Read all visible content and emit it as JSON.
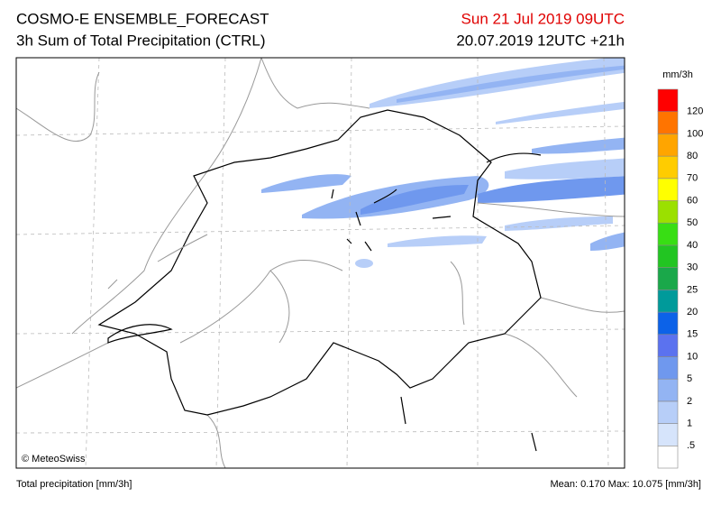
{
  "header": {
    "title": "COSMO-E ENSEMBLE_FORECAST",
    "subtitle": "3h Sum of Total Precipitation (CTRL)",
    "valid_time": "Sun 21 Jul 2019 09UTC",
    "run_time": "20.07.2019 12UTC +21h"
  },
  "legend": {
    "unit": "mm/3h",
    "levels": [
      ".5",
      "1",
      "2",
      "5",
      "10",
      "15",
      "20",
      "25",
      "30",
      "40",
      "50",
      "60",
      "70",
      "80",
      "100",
      "120"
    ],
    "colors": [
      "#ffffff",
      "#d6e4fb",
      "#b7cef8",
      "#93b4f3",
      "#6f98ee",
      "#5b72ef",
      "#0c62e8",
      "#009a9a",
      "#1aa84a",
      "#22c522",
      "#38de14",
      "#9be000",
      "#ffff00",
      "#ffcc00",
      "#ffa500",
      "#ff7400",
      "#ff0000"
    ]
  },
  "map": {
    "credit": "© MeteoSwiss"
  },
  "footer": {
    "left": "Total precipitation [mm/3h]",
    "stats": "Mean:  0.170 Max: 10.075 [mm/3h]"
  }
}
